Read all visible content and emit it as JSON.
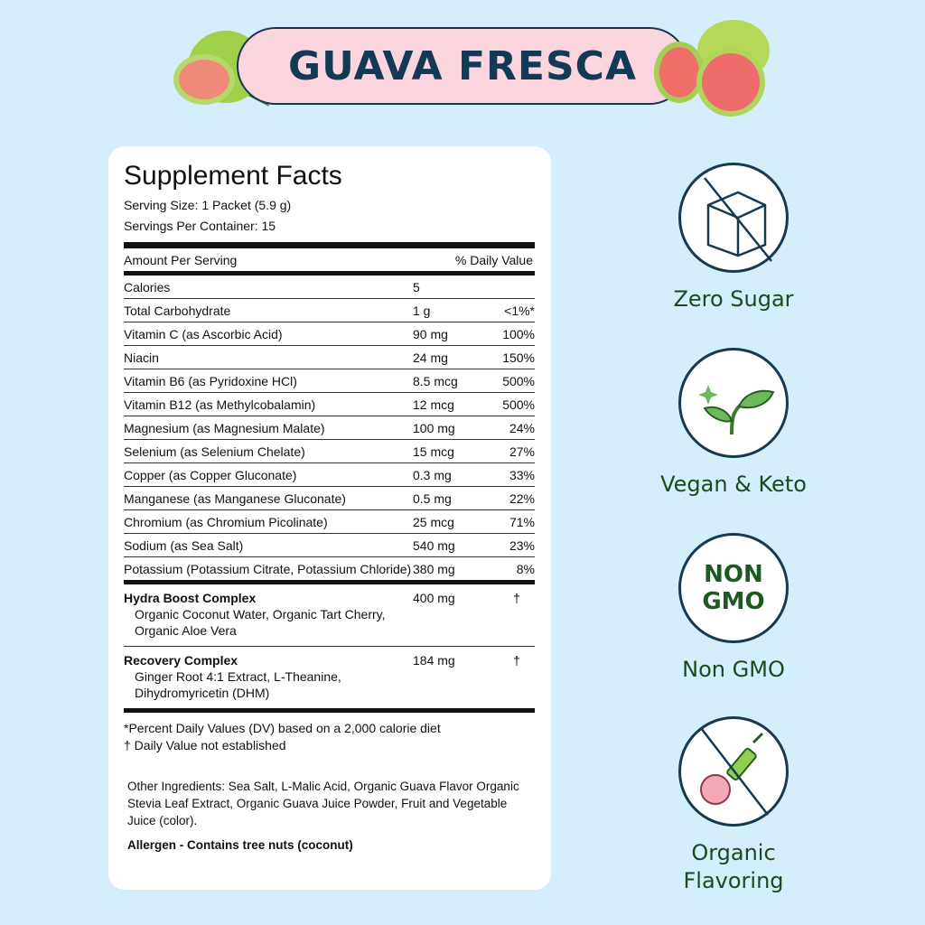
{
  "title": "GUAVA FRESCA",
  "facts": {
    "heading": "Supplement Facts",
    "serving_size": "Serving Size: 1 Packet (5.9 g)",
    "servings_per_container": "Servings Per Container: 15",
    "amount_per_serving": "Amount Per Serving",
    "daily_value": "% Daily Value",
    "rows": [
      {
        "name": "Calories",
        "amount": "5",
        "dv": ""
      },
      {
        "name": "Total Carbohydrate",
        "amount": "1 g",
        "dv": "<1%*"
      },
      {
        "name": "Vitamin C (as Ascorbic Acid)",
        "amount": "90 mg",
        "dv": "100%"
      },
      {
        "name": "Niacin",
        "amount": "24 mg",
        "dv": "150%"
      },
      {
        "name": "Vitamin B6  (as Pyridoxine HCl)",
        "amount": "8.5 mcg",
        "dv": "500%"
      },
      {
        "name": "Vitamin B12 (as Methylcobalamin)",
        "amount": "12 mcg",
        "dv": "500%"
      },
      {
        "name": "Magnesium (as Magnesium Malate)",
        "amount": "100 mg",
        "dv": "24%"
      },
      {
        "name": "Selenium (as Selenium Chelate)",
        "amount": "15 mcg",
        "dv": "27%"
      },
      {
        "name": "Copper (as Copper Gluconate)",
        "amount": "0.3 mg",
        "dv": "33%"
      },
      {
        "name": "Manganese (as Manganese Gluconate)",
        "amount": "0.5 mg",
        "dv": "22%"
      },
      {
        "name": "Chromium (as Chromium Picolinate)",
        "amount": "25 mcg",
        "dv": "71%"
      },
      {
        "name": "Sodium (as Sea Salt)",
        "amount": "540 mg",
        "dv": "23%"
      },
      {
        "name": "Potassium (Potassium Citrate, Potassium Chloride)",
        "amount": "380 mg",
        "dv": "8%"
      }
    ],
    "complexes": [
      {
        "name": "Hydra Boost Complex",
        "ingredients": "Organic Coconut Water, Organic Tart Cherry, Organic Aloe Vera",
        "amount": "400 mg",
        "dv": "†"
      },
      {
        "name": "Recovery Complex",
        "ingredients": "Ginger Root 4:1 Extract, L-Theanine, Dihydromyricetin (DHM)",
        "amount": "184 mg",
        "dv": "†"
      }
    ],
    "note1": "*Percent Daily Values (DV) based on a 2,000 calorie diet",
    "note2": "† Daily Value not established",
    "other_ingredients": "Other Ingredients:  Sea Salt, L-Malic Acid, Organic Guava Flavor Organic Stevia Leaf Extract, Organic Guava Juice Powder, Fruit and Vegetable Juice (color).",
    "allergen": "Allergen - Contains tree nuts (coconut)"
  },
  "badges": [
    {
      "icon": "no-sugar-cube-icon",
      "label": "Zero Sugar"
    },
    {
      "icon": "sprout-icon",
      "label": "Vegan & Keto"
    },
    {
      "icon": "non-gmo-icon",
      "icon_text_1": "NON",
      "icon_text_2": "GMO",
      "label": "Non GMO"
    },
    {
      "icon": "no-syringe-peach-icon",
      "label": "Organic Flavoring"
    }
  ],
  "colors": {
    "background": "#d5eefb",
    "banner": "#fbd5de",
    "title": "#123a55",
    "badge_label": "#1c4a1e"
  }
}
